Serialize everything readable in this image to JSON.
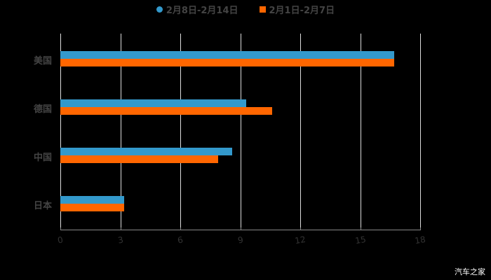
{
  "chart_data": {
    "type": "bar",
    "orientation": "horizontal",
    "title": "",
    "categories": [
      "美国",
      "德国",
      "中国",
      "日本"
    ],
    "series": [
      {
        "name": "2月8日-2月14日",
        "color": "#3399cc",
        "values": [
          16.7,
          9.3,
          8.6,
          3.2
        ]
      },
      {
        "name": "2月1日-2月7日",
        "color": "#ff6600",
        "values": [
          16.7,
          10.6,
          7.9,
          3.2
        ]
      }
    ],
    "xlabel": "",
    "ylabel": "",
    "xlim": [
      0,
      18
    ],
    "xticks": [
      "0",
      "3",
      "6",
      "9",
      "12",
      "15",
      "18"
    ],
    "grid": true,
    "legend_position": "top"
  },
  "legend": {
    "s1": "2月8日-2月14日",
    "s2": "2月1日-2月7日"
  },
  "watermark": "汽车之家"
}
